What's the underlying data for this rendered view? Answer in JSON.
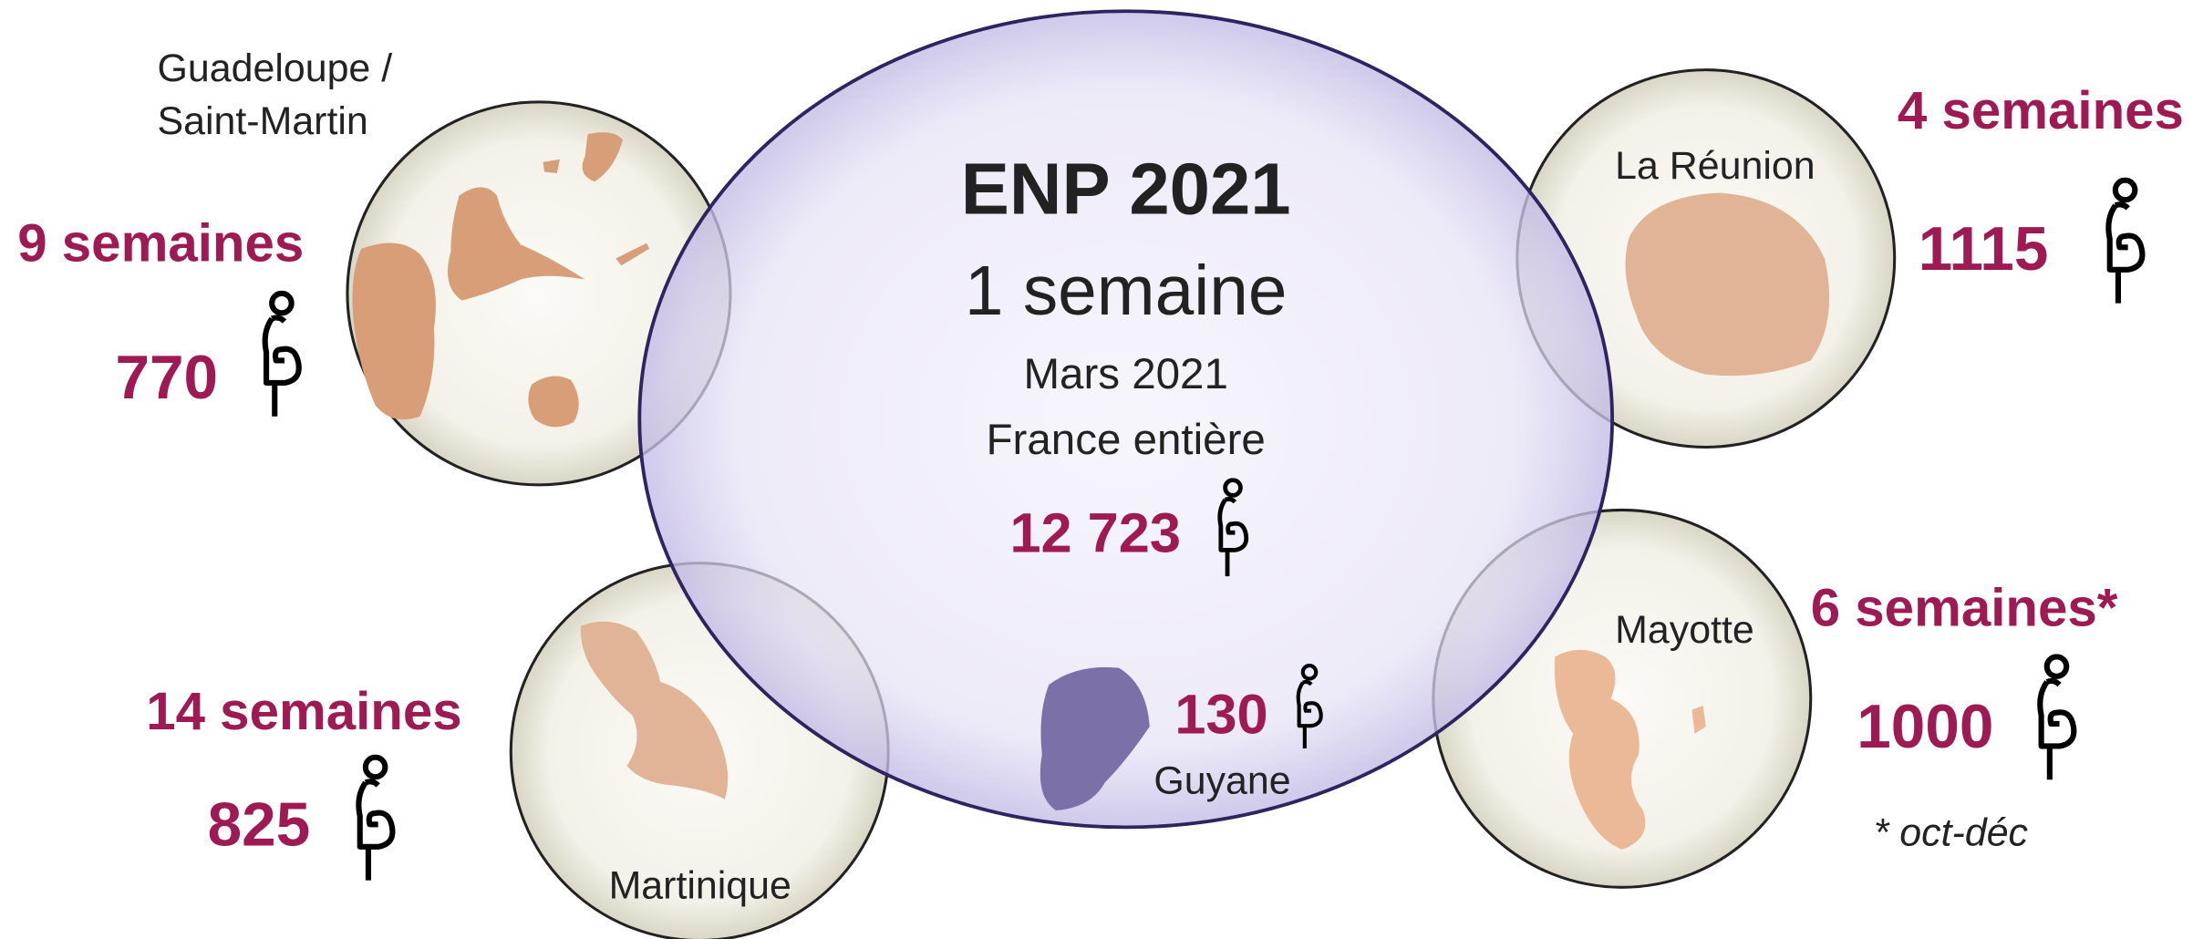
{
  "center": {
    "title": "ENP 2021",
    "duration": "1 semaine",
    "period": "Mars 2021",
    "scope": "France entière",
    "count": "12 723"
  },
  "regions": [
    {
      "name_lines": [
        "Guadeloupe /",
        "Saint-Martin"
      ],
      "duration": "9 semaines",
      "count": "770"
    },
    {
      "name": "La Réunion",
      "duration": "4 semaines",
      "count": "1115"
    },
    {
      "name": "Martinique",
      "duration": "14 semaines",
      "count": "825"
    },
    {
      "name": "Mayotte",
      "duration": "6 semaines*",
      "count": "1000",
      "footnote": "* oct-déc"
    },
    {
      "name": "Guyane",
      "count": "130"
    }
  ]
}
